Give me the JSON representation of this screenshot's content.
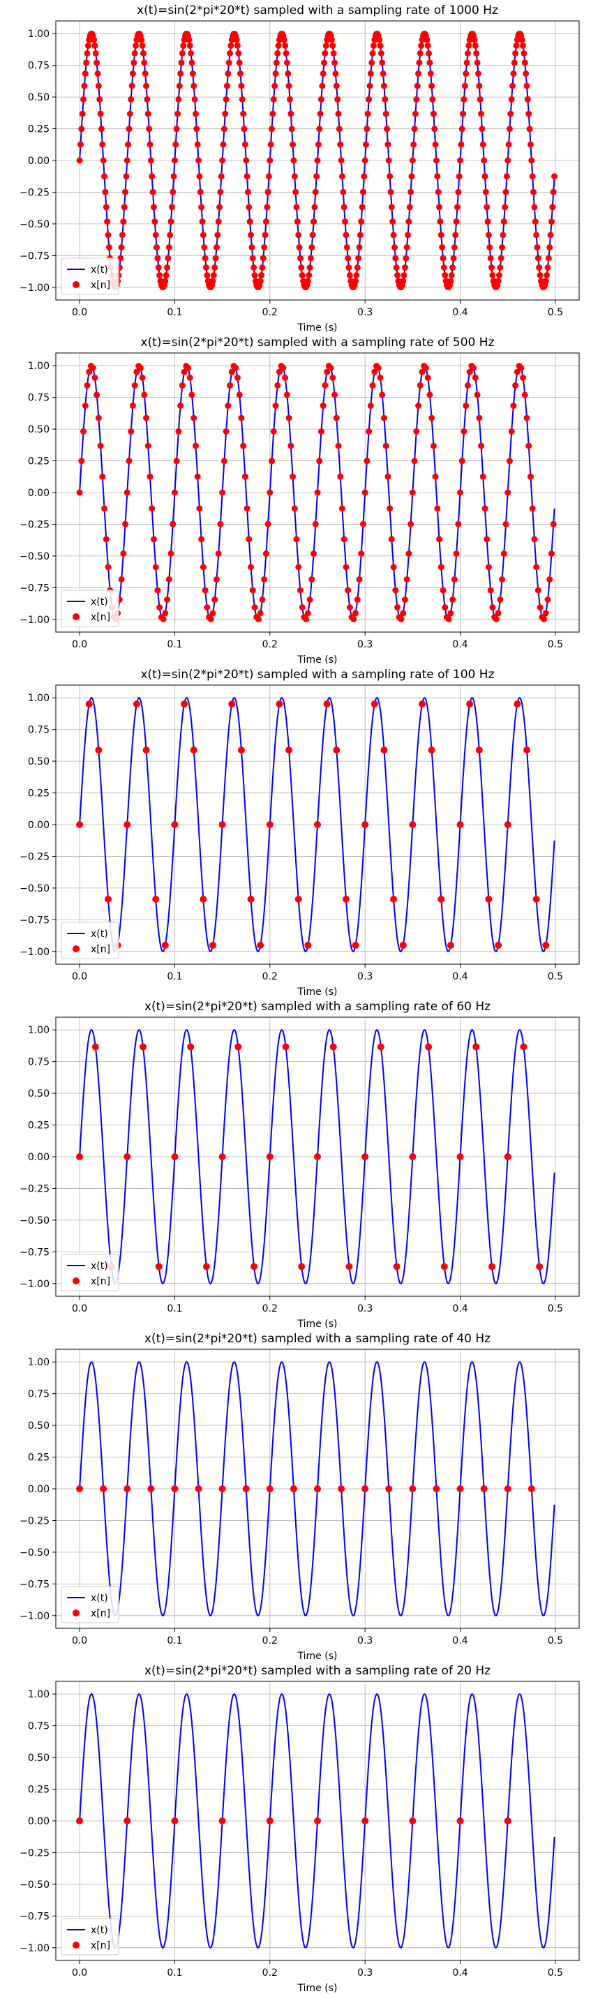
{
  "chart_data": [
    {
      "type": "line",
      "title": "x(t)=sin(2*pi*20*t) sampled with a sampling rate of 1000 Hz",
      "xlabel": "Time (s)",
      "ylabel": "",
      "xlim": [
        -0.025,
        0.525
      ],
      "ylim": [
        -1.1,
        1.1
      ],
      "grid": true,
      "legend": "lower-left",
      "xticks": [
        0.0,
        0.1,
        0.2,
        0.3,
        0.4,
        0.5
      ],
      "xtick_labels": [
        "0.0",
        "0.1",
        "0.2",
        "0.3",
        "0.4",
        "0.5"
      ],
      "yticks": [
        -1.0,
        -0.75,
        -0.5,
        -0.25,
        0.0,
        0.25,
        0.5,
        0.75,
        1.0
      ],
      "ytick_labels": [
        "−1.00",
        "−0.75",
        "−0.50",
        "−0.25",
        "0.00",
        "0.25",
        "0.50",
        "0.75",
        "1.00"
      ],
      "frequency_hz": 20,
      "sampling_rate_hz": 1000,
      "t_range": [
        0,
        0.5
      ],
      "series": [
        {
          "name": "x(t)",
          "kind": "line",
          "color": "#0000ff"
        },
        {
          "name": "x[n]",
          "kind": "scatter",
          "color": "#ff0000"
        }
      ]
    },
    {
      "type": "line",
      "title": "x(t)=sin(2*pi*20*t) sampled with a sampling rate of 500 Hz",
      "xlabel": "Time (s)",
      "ylabel": "",
      "xlim": [
        -0.025,
        0.525
      ],
      "ylim": [
        -1.1,
        1.1
      ],
      "grid": true,
      "legend": "lower-left",
      "xticks": [
        0.0,
        0.1,
        0.2,
        0.3,
        0.4,
        0.5
      ],
      "xtick_labels": [
        "0.0",
        "0.1",
        "0.2",
        "0.3",
        "0.4",
        "0.5"
      ],
      "yticks": [
        -1.0,
        -0.75,
        -0.5,
        -0.25,
        0.0,
        0.25,
        0.5,
        0.75,
        1.0
      ],
      "ytick_labels": [
        "−1.00",
        "−0.75",
        "−0.50",
        "−0.25",
        "0.00",
        "0.25",
        "0.50",
        "0.75",
        "1.00"
      ],
      "frequency_hz": 20,
      "sampling_rate_hz": 500,
      "t_range": [
        0,
        0.5
      ],
      "series": [
        {
          "name": "x(t)",
          "kind": "line",
          "color": "#0000ff"
        },
        {
          "name": "x[n]",
          "kind": "scatter",
          "color": "#ff0000"
        }
      ]
    },
    {
      "type": "line",
      "title": "x(t)=sin(2*pi*20*t) sampled with a sampling rate of 100 Hz",
      "xlabel": "Time (s)",
      "ylabel": "",
      "xlim": [
        -0.025,
        0.525
      ],
      "ylim": [
        -1.1,
        1.1
      ],
      "grid": true,
      "legend": "lower-left",
      "xticks": [
        0.0,
        0.1,
        0.2,
        0.3,
        0.4,
        0.5
      ],
      "xtick_labels": [
        "0.0",
        "0.1",
        "0.2",
        "0.3",
        "0.4",
        "0.5"
      ],
      "yticks": [
        -1.0,
        -0.75,
        -0.5,
        -0.25,
        0.0,
        0.25,
        0.5,
        0.75,
        1.0
      ],
      "ytick_labels": [
        "−1.00",
        "−0.75",
        "−0.50",
        "−0.25",
        "0.00",
        "0.25",
        "0.50",
        "0.75",
        "1.00"
      ],
      "frequency_hz": 20,
      "sampling_rate_hz": 100,
      "t_range": [
        0,
        0.5
      ],
      "series": [
        {
          "name": "x(t)",
          "kind": "line",
          "color": "#0000ff"
        },
        {
          "name": "x[n]",
          "kind": "scatter",
          "color": "#ff0000"
        }
      ]
    },
    {
      "type": "line",
      "title": "x(t)=sin(2*pi*20*t) sampled with a sampling rate of 60 Hz",
      "xlabel": "Time (s)",
      "ylabel": "",
      "xlim": [
        -0.025,
        0.525
      ],
      "ylim": [
        -1.1,
        1.1
      ],
      "grid": true,
      "legend": "lower-left",
      "xticks": [
        0.0,
        0.1,
        0.2,
        0.3,
        0.4,
        0.5
      ],
      "xtick_labels": [
        "0.0",
        "0.1",
        "0.2",
        "0.3",
        "0.4",
        "0.5"
      ],
      "yticks": [
        -1.0,
        -0.75,
        -0.5,
        -0.25,
        0.0,
        0.25,
        0.5,
        0.75,
        1.0
      ],
      "ytick_labels": [
        "−1.00",
        "−0.75",
        "−0.50",
        "−0.25",
        "0.00",
        "0.25",
        "0.50",
        "0.75",
        "1.00"
      ],
      "frequency_hz": 20,
      "sampling_rate_hz": 60,
      "t_range": [
        0,
        0.5
      ],
      "series": [
        {
          "name": "x(t)",
          "kind": "line",
          "color": "#0000ff"
        },
        {
          "name": "x[n]",
          "kind": "scatter",
          "color": "#ff0000"
        }
      ]
    },
    {
      "type": "line",
      "title": "x(t)=sin(2*pi*20*t) sampled with a sampling rate of 40 Hz",
      "xlabel": "Time (s)",
      "ylabel": "",
      "xlim": [
        -0.025,
        0.525
      ],
      "ylim": [
        -1.1,
        1.1
      ],
      "grid": true,
      "legend": "lower-left",
      "xticks": [
        0.0,
        0.1,
        0.2,
        0.3,
        0.4,
        0.5
      ],
      "xtick_labels": [
        "0.0",
        "0.1",
        "0.2",
        "0.3",
        "0.4",
        "0.5"
      ],
      "yticks": [
        -1.0,
        -0.75,
        -0.5,
        -0.25,
        0.0,
        0.25,
        0.5,
        0.75,
        1.0
      ],
      "ytick_labels": [
        "−1.00",
        "−0.75",
        "−0.50",
        "−0.25",
        "0.00",
        "0.25",
        "0.50",
        "0.75",
        "1.00"
      ],
      "frequency_hz": 20,
      "sampling_rate_hz": 40,
      "t_range": [
        0,
        0.5
      ],
      "series": [
        {
          "name": "x(t)",
          "kind": "line",
          "color": "#0000ff"
        },
        {
          "name": "x[n]",
          "kind": "scatter",
          "color": "#ff0000"
        }
      ]
    },
    {
      "type": "line",
      "title": "x(t)=sin(2*pi*20*t) sampled with a sampling rate of 20 Hz",
      "xlabel": "Time (s)",
      "ylabel": "",
      "xlim": [
        -0.025,
        0.525
      ],
      "ylim": [
        -1.1,
        1.1
      ],
      "grid": true,
      "legend": "lower-left",
      "xticks": [
        0.0,
        0.1,
        0.2,
        0.3,
        0.4,
        0.5
      ],
      "xtick_labels": [
        "0.0",
        "0.1",
        "0.2",
        "0.3",
        "0.4",
        "0.5"
      ],
      "yticks": [
        -1.0,
        -0.75,
        -0.5,
        -0.25,
        0.0,
        0.25,
        0.5,
        0.75,
        1.0
      ],
      "ytick_labels": [
        "−1.00",
        "−0.75",
        "−0.50",
        "−0.25",
        "0.00",
        "0.25",
        "0.50",
        "0.75",
        "1.00"
      ],
      "frequency_hz": 20,
      "sampling_rate_hz": 20,
      "t_range": [
        0,
        0.5
      ],
      "series": [
        {
          "name": "x(t)",
          "kind": "line",
          "color": "#0000ff"
        },
        {
          "name": "x[n]",
          "kind": "scatter",
          "color": "#ff0000"
        }
      ]
    }
  ]
}
